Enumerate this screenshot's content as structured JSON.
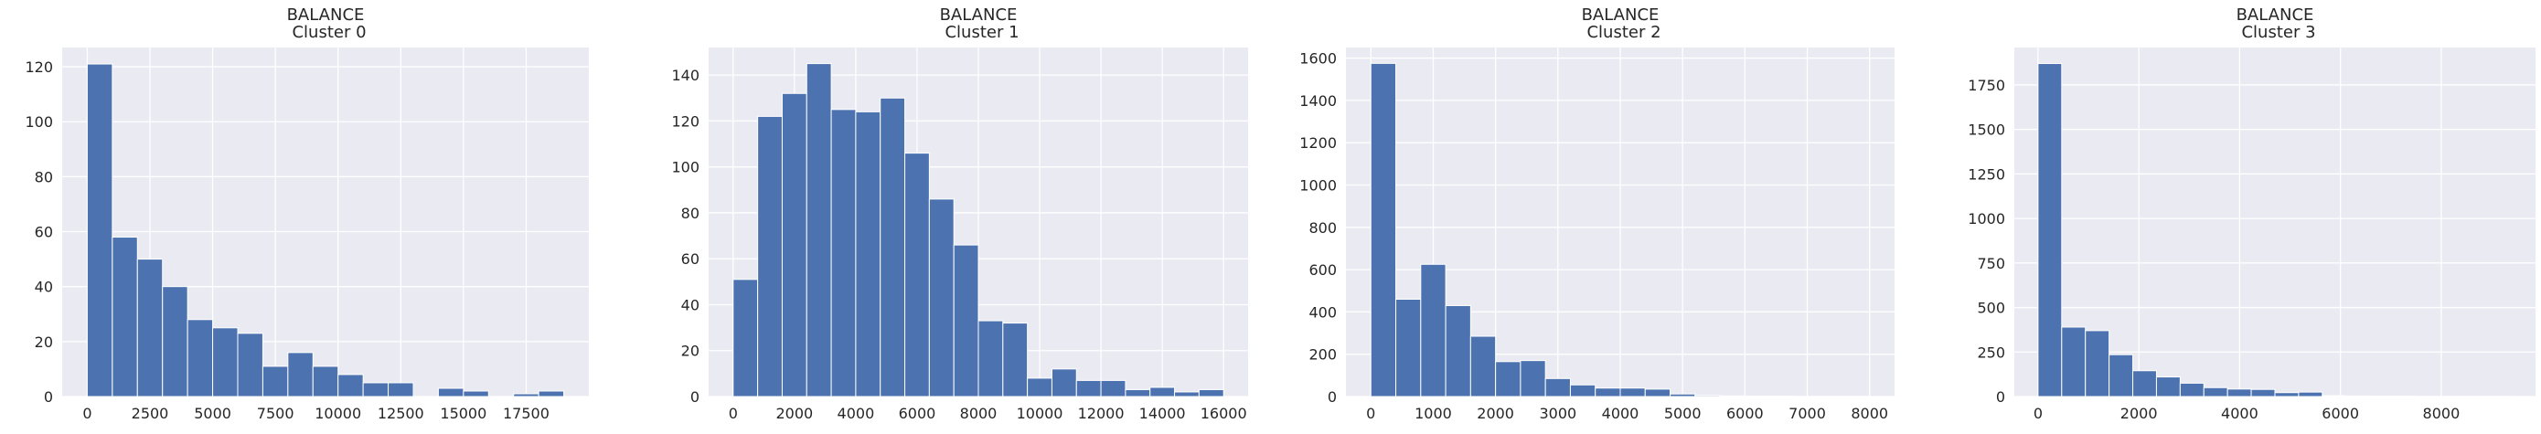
{
  "chart_data": [
    {
      "type": "bar",
      "title_line1": "BALANCE",
      "title_line2": "Cluster 0",
      "bin_edges": [
        0,
        1000,
        2000,
        3000,
        4000,
        5000,
        6000,
        7000,
        8000,
        9000,
        10000,
        11000,
        12000,
        13000,
        14000,
        15000,
        16000,
        17000,
        18000,
        19000
      ],
      "values": [
        121,
        58,
        50,
        40,
        28,
        25,
        23,
        11,
        16,
        11,
        8,
        5,
        5,
        0,
        3,
        2,
        0,
        1,
        2
      ],
      "xlim": [
        -1000,
        20000
      ],
      "ylim": [
        0,
        127
      ],
      "xticks": [
        0,
        2500,
        5000,
        7500,
        10000,
        12500,
        15000,
        17500
      ],
      "yticks": [
        0,
        20,
        40,
        60,
        80,
        100,
        120
      ],
      "bar_color": "#4c72b0",
      "background": "#eaeaf2",
      "grid": true
    },
    {
      "type": "bar",
      "title_line1": "BALANCE",
      "title_line2": "Cluster 1",
      "bin_edges": [
        0,
        800,
        1600,
        2400,
        3200,
        4000,
        4800,
        5600,
        6400,
        7200,
        8000,
        8800,
        9600,
        10400,
        11200,
        12000,
        12800,
        13600,
        14400,
        15200,
        16000
      ],
      "values": [
        51,
        122,
        132,
        145,
        125,
        124,
        130,
        106,
        86,
        66,
        33,
        32,
        8,
        12,
        7,
        7,
        3,
        4,
        2,
        3
      ],
      "xlim": [
        -800,
        16800
      ],
      "ylim": [
        0,
        152
      ],
      "xticks": [
        0,
        2000,
        4000,
        6000,
        8000,
        10000,
        12000,
        14000,
        16000
      ],
      "yticks": [
        0,
        20,
        40,
        60,
        80,
        100,
        120,
        140
      ],
      "bar_color": "#4c72b0",
      "background": "#eaeaf2",
      "grid": true
    },
    {
      "type": "bar",
      "title_line1": "BALANCE",
      "title_line2": "Cluster 2",
      "bin_edges": [
        0,
        400,
        800,
        1200,
        1600,
        2000,
        2400,
        2800,
        3200,
        3600,
        4000,
        4400,
        4800,
        5200,
        5600,
        6000,
        6400,
        6800,
        7200,
        7600,
        8000
      ],
      "values": [
        1575,
        460,
        625,
        430,
        285,
        165,
        170,
        85,
        55,
        40,
        40,
        35,
        12,
        5,
        3,
        2,
        2,
        1,
        1,
        1
      ],
      "xlim": [
        -400,
        8400
      ],
      "ylim": [
        0,
        1650
      ],
      "xticks": [
        0,
        1000,
        2000,
        3000,
        4000,
        5000,
        6000,
        7000,
        8000
      ],
      "yticks": [
        0,
        200,
        400,
        600,
        800,
        1000,
        1200,
        1400,
        1600
      ],
      "bar_color": "#4c72b0",
      "background": "#eaeaf2",
      "grid": true
    },
    {
      "type": "bar",
      "title_line1": "BALANCE",
      "title_line2": "Cluster 3",
      "bin_edges": [
        0,
        470,
        940,
        1410,
        1880,
        2350,
        2820,
        3290,
        3760,
        4230,
        4700,
        5170,
        5640,
        6110,
        6580,
        7050,
        7520,
        7990,
        8460,
        8930,
        9400
      ],
      "values": [
        1870,
        390,
        370,
        235,
        145,
        110,
        75,
        50,
        42,
        40,
        22,
        25,
        5,
        3,
        2,
        2,
        1,
        1,
        1,
        1
      ],
      "xlim": [
        -470,
        9870
      ],
      "ylim": [
        0,
        1960
      ],
      "xticks": [
        0,
        2000,
        4000,
        6000,
        8000
      ],
      "yticks": [
        0,
        250,
        500,
        750,
        1000,
        1250,
        1500,
        1750
      ],
      "bar_color": "#4c72b0",
      "background": "#eaeaf2",
      "grid": true
    }
  ]
}
